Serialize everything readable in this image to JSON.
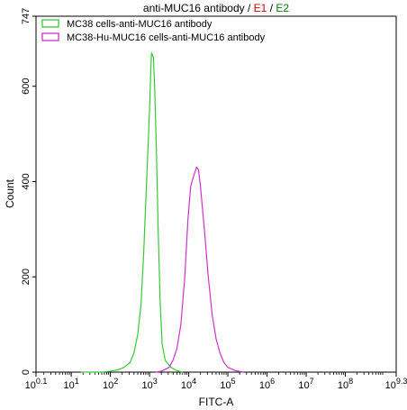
{
  "chart_data": {
    "type": "line",
    "title": {
      "main": "anti-MUC16 antibody",
      "sep1": " / ",
      "e1": "E1",
      "sep2": " / ",
      "e2": "E2"
    },
    "title_colors": {
      "main": "#000000",
      "e1": "#cc0000",
      "e2": "#008000"
    },
    "xlabel": "FITC-A",
    "ylabel": "Count",
    "x_scale": "log10",
    "xlim": [
      0.1,
      9.3
    ],
    "ylim": [
      0,
      747
    ],
    "x_ticks": [
      {
        "base": "10",
        "exp": "0.1"
      },
      {
        "base": "10",
        "exp": "1"
      },
      {
        "base": "10",
        "exp": "2"
      },
      {
        "base": "10",
        "exp": "3"
      },
      {
        "base": "10",
        "exp": "4"
      },
      {
        "base": "10",
        "exp": "5"
      },
      {
        "base": "10",
        "exp": "6"
      },
      {
        "base": "10",
        "exp": "7"
      },
      {
        "base": "10",
        "exp": "8"
      },
      {
        "base": "10",
        "exp": "9.3"
      }
    ],
    "y_ticks": [
      "0",
      "200",
      "400",
      "600",
      "747"
    ],
    "grid": false,
    "legend_position": "top-left",
    "series": [
      {
        "name": "MC38 cells-anti-MUC16 antibody",
        "color": "#33cc33",
        "points": [
          [
            1.25,
            0
          ],
          [
            1.8,
            0
          ],
          [
            2.0,
            2
          ],
          [
            2.2,
            5
          ],
          [
            2.35,
            10
          ],
          [
            2.5,
            20
          ],
          [
            2.6,
            40
          ],
          [
            2.7,
            80
          ],
          [
            2.78,
            140
          ],
          [
            2.85,
            250
          ],
          [
            2.9,
            350
          ],
          [
            2.95,
            450
          ],
          [
            3.0,
            550
          ],
          [
            3.03,
            630
          ],
          [
            3.05,
            670
          ],
          [
            3.1,
            660
          ],
          [
            3.13,
            600
          ],
          [
            3.18,
            450
          ],
          [
            3.22,
            300
          ],
          [
            3.27,
            150
          ],
          [
            3.32,
            60
          ],
          [
            3.4,
            25
          ],
          [
            3.55,
            10
          ],
          [
            3.7,
            3
          ],
          [
            3.85,
            0
          ]
        ]
      },
      {
        "name": "MC38-Hu-MUC16 cells-anti-MUC16 antibody",
        "color": "#cc33cc",
        "points": [
          [
            3.15,
            0
          ],
          [
            3.3,
            2
          ],
          [
            3.5,
            10
          ],
          [
            3.6,
            25
          ],
          [
            3.7,
            50
          ],
          [
            3.8,
            100
          ],
          [
            3.9,
            200
          ],
          [
            3.98,
            320
          ],
          [
            4.05,
            390
          ],
          [
            4.12,
            410
          ],
          [
            4.2,
            430
          ],
          [
            4.25,
            425
          ],
          [
            4.3,
            390
          ],
          [
            4.4,
            300
          ],
          [
            4.5,
            200
          ],
          [
            4.6,
            120
          ],
          [
            4.7,
            70
          ],
          [
            4.8,
            40
          ],
          [
            4.9,
            20
          ],
          [
            5.0,
            10
          ],
          [
            5.2,
            3
          ],
          [
            5.4,
            0
          ]
        ]
      }
    ]
  }
}
